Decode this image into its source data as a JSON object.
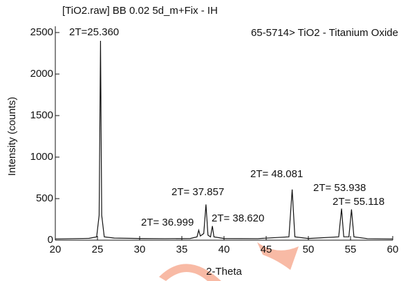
{
  "chart_data": {
    "type": "line",
    "title": "[TiO2.raw] BB 0.02 5d_m+Fix - IH",
    "subtitle": "65-5714> TiO2 - Titanium Oxide",
    "x_label": "2-Theta",
    "y_label": "Intensity (counts)",
    "x": [
      20,
      22,
      24,
      24.9,
      25.2,
      25.36,
      25.5,
      25.8,
      27,
      30,
      33,
      36,
      36.8,
      36.999,
      37.2,
      37.6,
      37.857,
      38.1,
      38.4,
      38.62,
      38.8,
      40,
      44,
      47.7,
      48.081,
      48.4,
      50,
      53.6,
      53.938,
      54.2,
      54.8,
      55.118,
      55.4,
      57,
      60
    ],
    "series": [
      {
        "color": "#111111",
        "values": [
          15,
          18,
          22,
          40,
          300,
          2400,
          300,
          40,
          25,
          20,
          18,
          20,
          40,
          120,
          50,
          80,
          430,
          60,
          40,
          170,
          40,
          20,
          18,
          40,
          610,
          40,
          20,
          40,
          380,
          40,
          40,
          370,
          40,
          18,
          15
        ]
      }
    ],
    "annotations": [
      "2T=25.360",
      "2T= 37.857",
      "2T= 36.999",
      "2T= 38.620",
      "2T= 48.081",
      "2T= 53.938",
      "2T= 55.118"
    ],
    "xlim": [
      20,
      60
    ],
    "xticks": [
      20,
      25,
      30,
      35,
      40,
      45,
      50,
      55,
      60
    ],
    "ylim": [
      0,
      2500
    ],
    "yticks": [
      0,
      500,
      1000,
      1500,
      2000,
      2500
    ]
  }
}
